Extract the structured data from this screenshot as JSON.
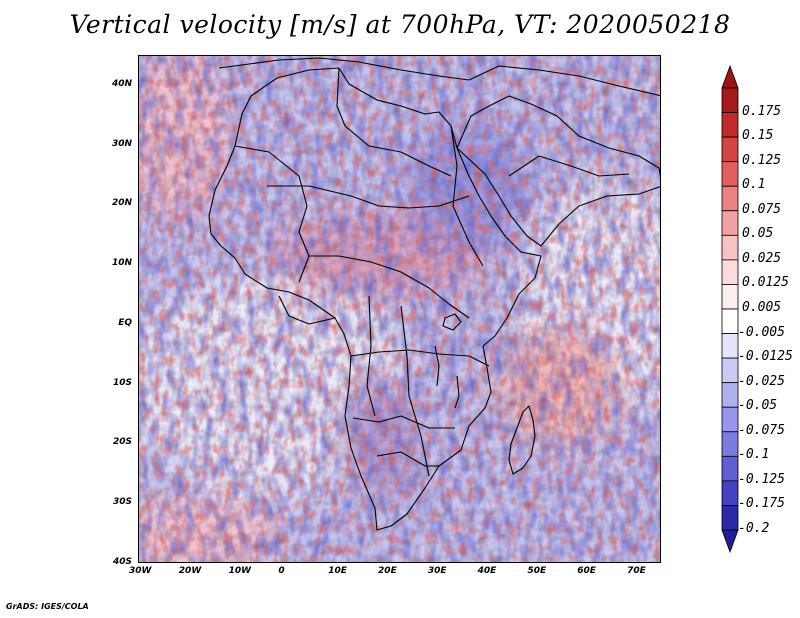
{
  "title": "Vertical velocity [m/s] at 700hPa, VT: 2020050218",
  "credit": "GrADS: IGES/COLA",
  "map": {
    "lon_range": [
      -30,
      75
    ],
    "lat_range": [
      -40,
      45
    ],
    "lat_ticks": [
      {
        "value": 40,
        "label": "40N"
      },
      {
        "value": 30,
        "label": "30N"
      },
      {
        "value": 20,
        "label": "20N"
      },
      {
        "value": 10,
        "label": "10N"
      },
      {
        "value": 0,
        "label": "EQ"
      },
      {
        "value": -10,
        "label": "10S"
      },
      {
        "value": -20,
        "label": "20S"
      },
      {
        "value": -30,
        "label": "30S"
      },
      {
        "value": -40,
        "label": "40S"
      }
    ],
    "lon_ticks": [
      {
        "value": -30,
        "label": "30W"
      },
      {
        "value": -20,
        "label": "20W"
      },
      {
        "value": -10,
        "label": "10W"
      },
      {
        "value": 0,
        "label": "0"
      },
      {
        "value": 10,
        "label": "10E"
      },
      {
        "value": 20,
        "label": "20E"
      },
      {
        "value": 30,
        "label": "30E"
      },
      {
        "value": 40,
        "label": "40E"
      },
      {
        "value": 50,
        "label": "50E"
      },
      {
        "value": 60,
        "label": "60E"
      },
      {
        "value": 70,
        "label": "70E"
      }
    ]
  },
  "colorbar": {
    "levels": [
      {
        "label": "0.175",
        "color": "#a51a1a"
      },
      {
        "label": "0.15",
        "color": "#c22a2a"
      },
      {
        "label": "0.125",
        "color": "#d64545"
      },
      {
        "label": "0.1",
        "color": "#e26060"
      },
      {
        "label": "0.075",
        "color": "#eb8282"
      },
      {
        "label": "0.05",
        "color": "#f2a2a2"
      },
      {
        "label": "0.025",
        "color": "#f7c2c2"
      },
      {
        "label": "0.0125",
        "color": "#fbdcdc"
      },
      {
        "label": "0.005",
        "color": "#fdeeee"
      },
      {
        "label": "-0.005",
        "color": "#ffffff"
      },
      {
        "label": "-0.0125",
        "color": "#e4e4fb"
      },
      {
        "label": "-0.025",
        "color": "#cacaf6"
      },
      {
        "label": "-0.05",
        "color": "#b0b0f1"
      },
      {
        "label": "-0.075",
        "color": "#9696ea"
      },
      {
        "label": "-0.1",
        "color": "#7b7be0"
      },
      {
        "label": "-0.125",
        "color": "#5f5fd2"
      },
      {
        "label": "-0.175",
        "color": "#4343bf"
      },
      {
        "label": "-0.2",
        "color": "#2a2aa8"
      }
    ],
    "top_color": "#9e1414",
    "bottom_color": "#1e1e9a"
  }
}
